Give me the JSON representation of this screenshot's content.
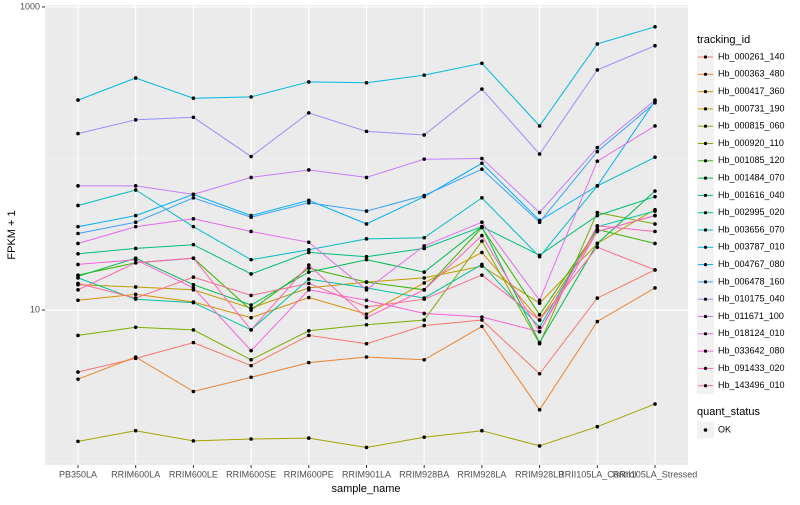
{
  "chart_data": {
    "type": "line",
    "x_label": "sample_name",
    "y_label": "FPKM + 1",
    "categories": [
      "PB350LA",
      "RRIM600LA",
      "RRIM600LE",
      "RRIM600SE",
      "RRIM600PE",
      "RRIM901LA",
      "RRIM928BA",
      "RRIM928LA",
      "RRIM928LB",
      "RRII105LA_Control",
      "RRII105LA_Stressed"
    ],
    "ylog": true,
    "ylim": [
      0.95,
      1030
    ],
    "yticks": [
      10,
      1000
    ],
    "yminorticks": [
      1,
      100
    ],
    "grid": true,
    "legend_title": "tracking_id",
    "legend_position": "right",
    "point_legend": {
      "title": "quant_status",
      "levels": [
        "OK"
      ]
    },
    "series": [
      {
        "name": "Hb_000261_140",
        "color": "#F8766D",
        "values": [
          3.9,
          4.8,
          6.1,
          4.3,
          6.8,
          6.0,
          7.9,
          8.6,
          3.8,
          12,
          18.4
        ]
      },
      {
        "name": "Hb_000363_480",
        "color": "#EA8331",
        "values": [
          3.5,
          4.9,
          2.9,
          3.6,
          4.5,
          4.9,
          4.7,
          7.8,
          2.2,
          8.4,
          14
        ]
      },
      {
        "name": "Hb_000417_360",
        "color": "#D89000",
        "values": [
          11.6,
          12.7,
          11.3,
          8.9,
          12.1,
          9.4,
          15.1,
          24,
          8.6,
          33,
          42
        ]
      },
      {
        "name": "Hb_000731_190",
        "color": "#C09B00",
        "values": [
          14.7,
          14.2,
          13.6,
          10.3,
          14.0,
          15.3,
          16.3,
          19.5,
          11.1,
          27.5,
          46
        ]
      },
      {
        "name": "Hb_000815_060",
        "color": "#A3A500",
        "values": [
          1.36,
          1.6,
          1.37,
          1.41,
          1.43,
          1.24,
          1.45,
          1.6,
          1.27,
          1.7,
          2.4
        ]
      },
      {
        "name": "Hb_000920_110",
        "color": "#7CAE00",
        "values": [
          6.8,
          7.7,
          7.4,
          4.7,
          7.3,
          8.0,
          8.6,
          28.5,
          6.0,
          44,
          37
        ]
      },
      {
        "name": "Hb_001085_120",
        "color": "#39B600",
        "values": [
          17,
          20.5,
          22,
          10,
          18.9,
          15.3,
          13.6,
          35,
          9.3,
          34,
          27.5
        ]
      },
      {
        "name": "Hb_001484_070",
        "color": "#00BB4E",
        "values": [
          16.7,
          22,
          14.7,
          10.8,
          17.8,
          21.5,
          17.8,
          35.5,
          6.1,
          27.5,
          61
        ]
      },
      {
        "name": "Hb_001616_040",
        "color": "#00BF7D",
        "values": [
          23.5,
          25.5,
          27,
          17.3,
          24,
          22.5,
          25.5,
          35.5,
          23,
          42,
          56
        ]
      },
      {
        "name": "Hb_002995_020",
        "color": "#00C1A3",
        "values": [
          16.3,
          11.8,
          11.2,
          7.4,
          16,
          14,
          12,
          20,
          7.7,
          35.5,
          45
        ]
      },
      {
        "name": "Hb_003656_070",
        "color": "#00BFC4",
        "values": [
          49,
          62,
          35.5,
          21.5,
          25,
          29.5,
          30,
          55,
          22.5,
          66,
          102
        ]
      },
      {
        "name": "Hb_003787_010",
        "color": "#00BAE0",
        "values": [
          243,
          340,
          250,
          255,
          320,
          316,
          355,
          425,
          164,
          570,
          740
        ]
      },
      {
        "name": "Hb_004767_080",
        "color": "#00B0F6",
        "values": [
          35.5,
          42,
          58,
          42,
          53,
          37,
          56,
          93,
          39,
          66,
          240
        ]
      },
      {
        "name": "Hb_006478_160",
        "color": "#35A2FF",
        "values": [
          32,
          38,
          55,
          41,
          51,
          45,
          57,
          85,
          38,
          111,
          233
        ]
      },
      {
        "name": "Hb_010175_040",
        "color": "#9590FF",
        "values": [
          146,
          180,
          187,
          103,
          200,
          151,
          143,
          287,
          107,
          384,
          555
        ]
      },
      {
        "name": "Hb_011671_100",
        "color": "#C77CFF",
        "values": [
          66,
          66,
          58,
          75,
          84,
          75,
          99,
          100,
          44,
          118,
          243
        ]
      },
      {
        "name": "Hb_018124_010",
        "color": "#E76BF3",
        "values": [
          27.5,
          35.5,
          40,
          33,
          28,
          13.6,
          26.5,
          38,
          11.6,
          96,
          164
        ]
      },
      {
        "name": "Hb_033642_080",
        "color": "#FA62DB",
        "values": [
          20,
          21.5,
          14,
          5.4,
          13.6,
          11.6,
          9.5,
          9,
          7.2,
          33,
          42
        ]
      },
      {
        "name": "Hb_091433_020",
        "color": "#FF62BC",
        "values": [
          13.6,
          20.5,
          22,
          7.4,
          19.8,
          8.9,
          13.6,
          31,
          7.2,
          36,
          33
        ]
      },
      {
        "name": "Hb_143496_010",
        "color": "#FF6C91",
        "values": [
          15,
          12,
          16.5,
          12.5,
          15,
          10.5,
          11.8,
          17,
          8.6,
          26,
          18.4
        ]
      }
    ]
  }
}
